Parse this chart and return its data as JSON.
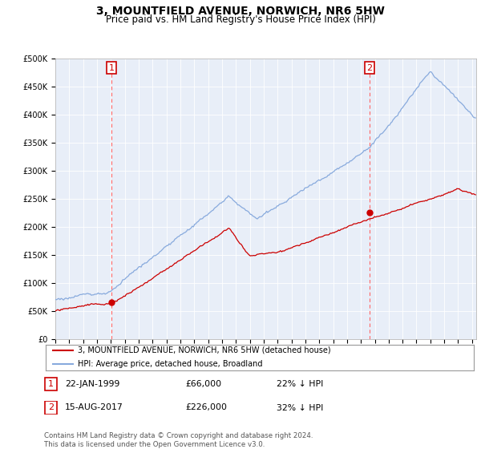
{
  "title": "3, MOUNTFIELD AVENUE, NORWICH, NR6 5HW",
  "subtitle": "Price paid vs. HM Land Registry's House Price Index (HPI)",
  "title_fontsize": 10,
  "subtitle_fontsize": 8.5,
  "hpi_color": "#88aadd",
  "price_color": "#cc0000",
  "ylim": [
    0,
    500000
  ],
  "yticks": [
    0,
    50000,
    100000,
    150000,
    200000,
    250000,
    300000,
    350000,
    400000,
    450000,
    500000
  ],
  "ytick_labels": [
    "£0",
    "£50K",
    "£100K",
    "£150K",
    "£200K",
    "£250K",
    "£300K",
    "£350K",
    "£400K",
    "£450K",
    "£500K"
  ],
  "legend_line1": "3, MOUNTFIELD AVENUE, NORWICH, NR6 5HW (detached house)",
  "legend_line2": "HPI: Average price, detached house, Broadland",
  "table_row1": [
    "1",
    "22-JAN-1999",
    "£66,000",
    "22% ↓ HPI"
  ],
  "table_row2": [
    "2",
    "15-AUG-2017",
    "£226,000",
    "32% ↓ HPI"
  ],
  "footer": "Contains HM Land Registry data © Crown copyright and database right 2024.\nThis data is licensed under the Open Government Licence v3.0.",
  "m1_x": 1999.05,
  "m2_x": 2017.63,
  "m1_y": 66000,
  "m2_y": 226000,
  "xmin": 1995,
  "xmax": 2025.3,
  "chart_bg": "#e8eef8"
}
